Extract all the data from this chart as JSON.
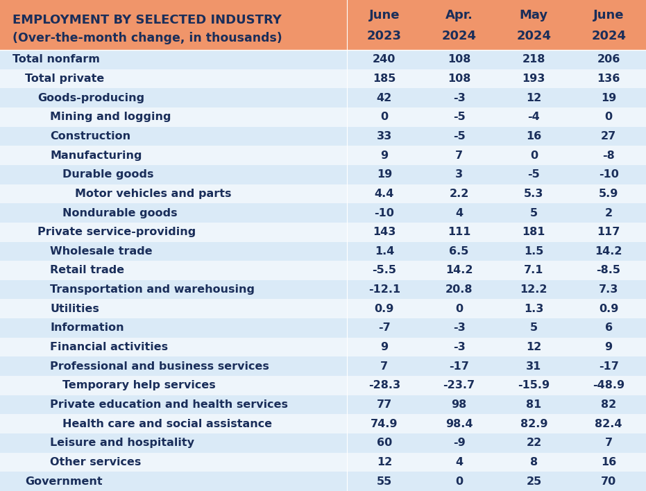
{
  "title_line1": "EMPLOYMENT BY SELECTED INDUSTRY",
  "title_line2": "(Over-the-month change, in thousands)",
  "col_headers": [
    [
      "June",
      "2023"
    ],
    [
      "Apr.",
      "2024"
    ],
    [
      "May",
      "2024"
    ],
    [
      "June",
      "2024"
    ]
  ],
  "rows": [
    {
      "label": "Total nonfarm",
      "indent": 0,
      "values": [
        "240",
        "108",
        "218",
        "206"
      ]
    },
    {
      "label": "Total private",
      "indent": 1,
      "values": [
        "185",
        "108",
        "193",
        "136"
      ]
    },
    {
      "label": "Goods-producing",
      "indent": 2,
      "values": [
        "42",
        "-3",
        "12",
        "19"
      ]
    },
    {
      "label": "Mining and logging",
      "indent": 3,
      "values": [
        "0",
        "-5",
        "-4",
        "0"
      ]
    },
    {
      "label": "Construction",
      "indent": 3,
      "values": [
        "33",
        "-5",
        "16",
        "27"
      ]
    },
    {
      "label": "Manufacturing",
      "indent": 3,
      "values": [
        "9",
        "7",
        "0",
        "-8"
      ]
    },
    {
      "label": "Durable goods",
      "indent": 4,
      "values": [
        "19",
        "3",
        "-5",
        "-10"
      ]
    },
    {
      "label": "Motor vehicles and parts",
      "indent": 5,
      "values": [
        "4.4",
        "2.2",
        "5.3",
        "5.9"
      ]
    },
    {
      "label": "Nondurable goods",
      "indent": 4,
      "values": [
        "-10",
        "4",
        "5",
        "2"
      ]
    },
    {
      "label": "Private service-providing",
      "indent": 2,
      "values": [
        "143",
        "111",
        "181",
        "117"
      ]
    },
    {
      "label": "Wholesale trade",
      "indent": 3,
      "values": [
        "1.4",
        "6.5",
        "1.5",
        "14.2"
      ]
    },
    {
      "label": "Retail trade",
      "indent": 3,
      "values": [
        "-5.5",
        "14.2",
        "7.1",
        "-8.5"
      ]
    },
    {
      "label": "Transportation and warehousing",
      "indent": 3,
      "values": [
        "-12.1",
        "20.8",
        "12.2",
        "7.3"
      ]
    },
    {
      "label": "Utilities",
      "indent": 3,
      "values": [
        "0.9",
        "0",
        "1.3",
        "0.9"
      ]
    },
    {
      "label": "Information",
      "indent": 3,
      "values": [
        "-7",
        "-3",
        "5",
        "6"
      ]
    },
    {
      "label": "Financial activities",
      "indent": 3,
      "values": [
        "9",
        "-3",
        "12",
        "9"
      ]
    },
    {
      "label": "Professional and business services",
      "indent": 3,
      "values": [
        "7",
        "-17",
        "31",
        "-17"
      ]
    },
    {
      "label": "Temporary help services",
      "indent": 4,
      "values": [
        "-28.3",
        "-23.7",
        "-15.9",
        "-48.9"
      ]
    },
    {
      "label": "Private education and health services",
      "indent": 3,
      "values": [
        "77",
        "98",
        "81",
        "82"
      ]
    },
    {
      "label": "Health care and social assistance",
      "indent": 4,
      "values": [
        "74.9",
        "98.4",
        "82.9",
        "82.4"
      ]
    },
    {
      "label": "Leisure and hospitality",
      "indent": 3,
      "values": [
        "60",
        "-9",
        "22",
        "7"
      ]
    },
    {
      "label": "Other services",
      "indent": 3,
      "values": [
        "12",
        "4",
        "8",
        "16"
      ]
    },
    {
      "label": "Government",
      "indent": 1,
      "values": [
        "55",
        "0",
        "25",
        "70"
      ]
    }
  ],
  "header_bg": "#F0956A",
  "row_colors": [
    "#DAE8F5",
    "#EDF4FB"
  ],
  "odd_alt_color": "#F5EDE8",
  "text_color": "#1a2e5a",
  "header_text_color": "#1a2e5a",
  "font_size": 11.5,
  "header_font_size": 13
}
